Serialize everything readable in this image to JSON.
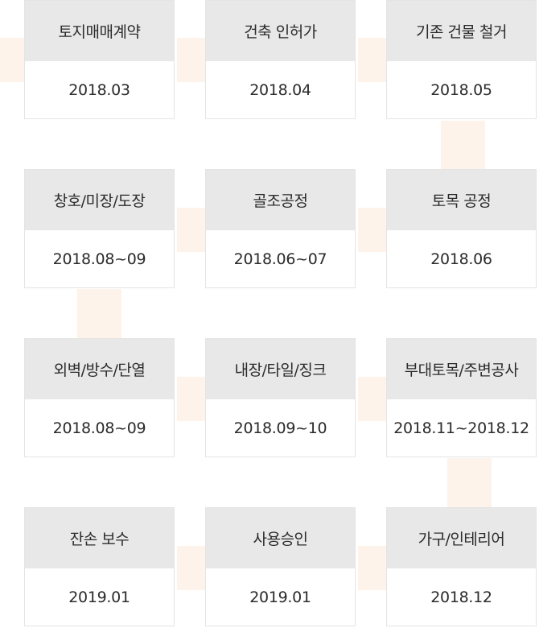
{
  "steps": [
    {
      "title": "토지매매계약",
      "date": "2018.03"
    },
    {
      "title": "건축 인허가",
      "date": "2018.04"
    },
    {
      "title": "기존 건물 철거",
      "date": "2018.05"
    },
    {
      "title": "토목 공정",
      "date": "2018.06"
    },
    {
      "title": "골조공정",
      "date": "2018.06~07"
    },
    {
      "title": "창호/미장/도장",
      "date": "2018.08~09"
    },
    {
      "title": "외벽/방수/단열",
      "date": "2018.08~09"
    },
    {
      "title": "내장/타일/징크",
      "date": "2018.09~10"
    },
    {
      "title": "부대토목/주변공사",
      "date": "2018.11~2018.12"
    },
    {
      "title": "가구/인테리어",
      "date": "2018.12"
    },
    {
      "title": "사용승인",
      "date": "2019.01"
    },
    {
      "title": "잔손 보수",
      "date": "2019.01"
    }
  ],
  "colors": {
    "connector": "#fdf3ea",
    "title_bg": "#e8e8e8",
    "border": "#e4e4e4",
    "text": "#2b2b2b"
  }
}
